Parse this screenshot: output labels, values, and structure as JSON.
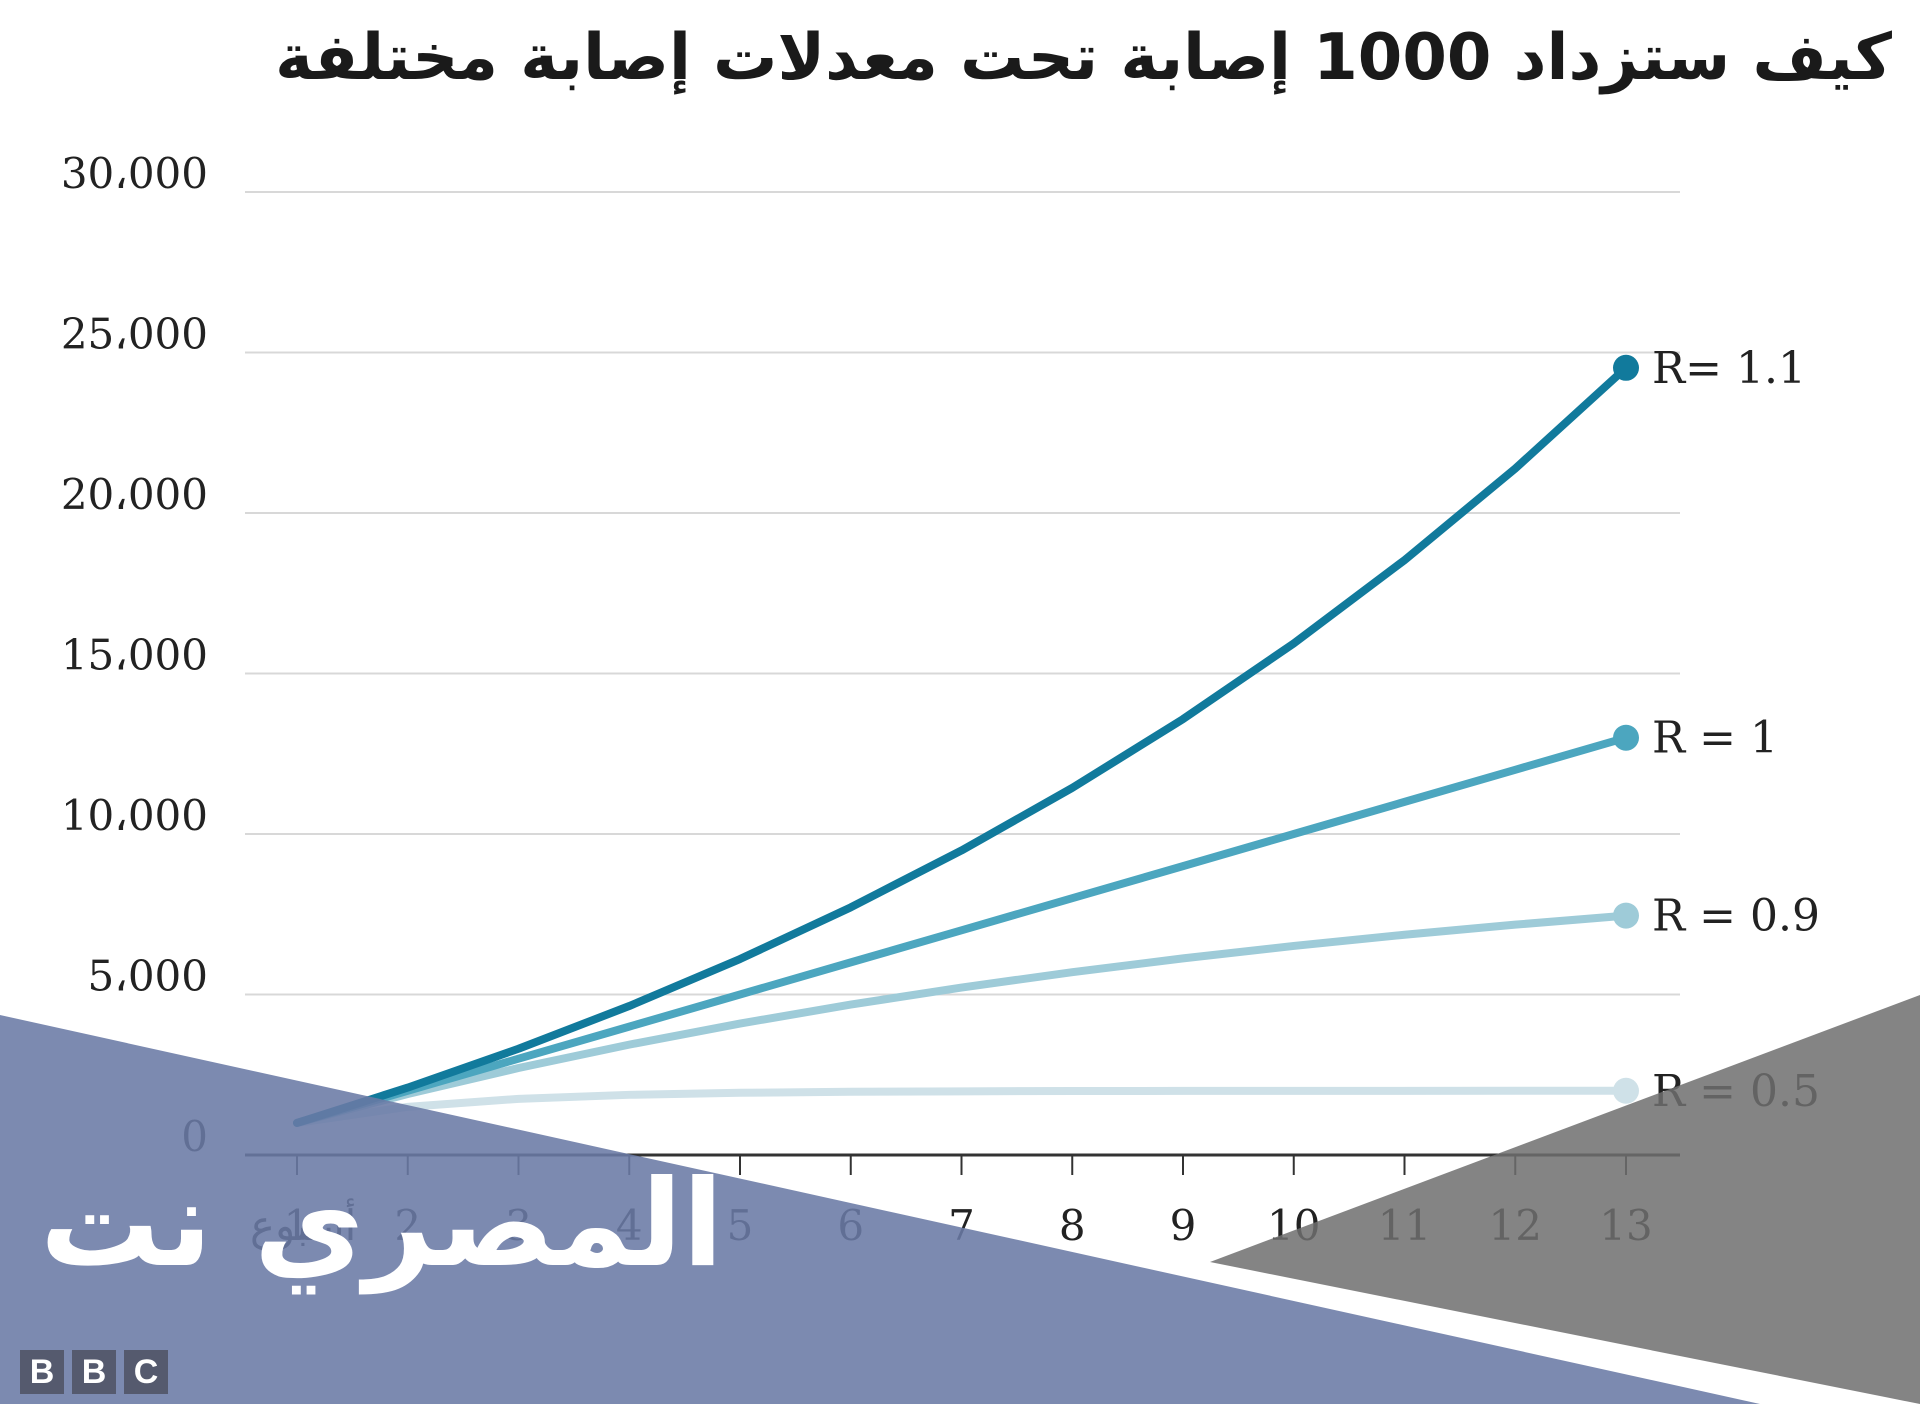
{
  "title": "كيف ستزداد 1000 إصابة تحت معدلات إصابة مختلفة",
  "chart_data": {
    "type": "line",
    "title": "كيف ستزداد 1000 إصابة تحت معدلات إصابة مختلفة",
    "xlabel": "أسبوع",
    "ylabel": "",
    "x": [
      1,
      2,
      3,
      4,
      5,
      6,
      7,
      8,
      9,
      10,
      11,
      12,
      13
    ],
    "x_tick_labels": [
      "1",
      "2",
      "3",
      "4",
      "5",
      "6",
      "7",
      "8",
      "9",
      "10",
      "11",
      "12",
      "13"
    ],
    "y_ticks": [
      0,
      5000,
      10000,
      15000,
      20000,
      25000,
      30000
    ],
    "y_tick_labels": [
      "0",
      "5،000",
      "10،000",
      "15،000",
      "20،000",
      "25،000",
      "30،000"
    ],
    "ylim": [
      0,
      30000
    ],
    "grid": true,
    "series": [
      {
        "name": "R = 0.5",
        "color": "#cfe1e8",
        "values": [
          1000,
          1500,
          1750,
          1875,
          1938,
          1969,
          1984,
          1992,
          1996,
          1998,
          1999,
          2000,
          2000
        ]
      },
      {
        "name": "R = 0.9",
        "color": "#9ecbd8",
        "values": [
          1000,
          1900,
          2710,
          3439,
          4095,
          4686,
          5217,
          5695,
          6126,
          6513,
          6862,
          7176,
          7458
        ]
      },
      {
        "name": "R = 1",
        "color": "#4ca6bf",
        "values": [
          1000,
          2000,
          3000,
          4000,
          5000,
          6000,
          7000,
          8000,
          9000,
          10000,
          11000,
          12000,
          13000
        ]
      },
      {
        "name": "R= 1.1",
        "color": "#117a9c",
        "values": [
          1000,
          2100,
          3310,
          4641,
          6105,
          7716,
          9487,
          11436,
          13579,
          15937,
          18531,
          21384,
          24523
        ]
      }
    ]
  },
  "watermark": "المصري نت",
  "logo": {
    "letters": [
      "B",
      "B",
      "C"
    ]
  },
  "colors": {
    "grid": "#d8d8d8",
    "axis": "#333333",
    "overlay_blue": "#6a7aa5",
    "overlay_gray": "#6e6e6e"
  }
}
